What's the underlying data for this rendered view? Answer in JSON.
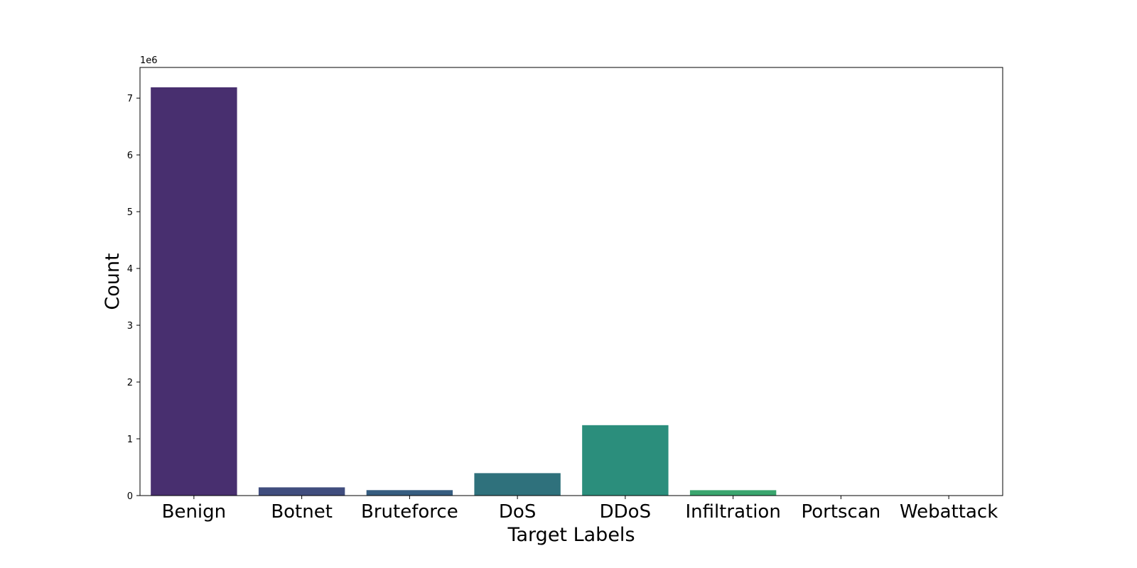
{
  "chart_data": {
    "type": "bar",
    "title": "",
    "xlabel": "Target Labels",
    "ylabel": "Count",
    "offset_label": "1e6",
    "categories": [
      "Benign",
      "Botnet",
      "Bruteforce",
      "DoS",
      "DDoS",
      "Infiltration",
      "Portscan",
      "Webattack"
    ],
    "values": [
      7190000,
      145000,
      96000,
      395000,
      1240000,
      95000,
      1800,
      1200
    ],
    "colors": [
      "#482f6f",
      "#404d7e",
      "#365d80",
      "#2f717c",
      "#2b8e7c",
      "#3aa56e",
      "#5fbc5a",
      "#98cd3c"
    ],
    "ylim": [
      0,
      7540000
    ],
    "yticks": [
      0,
      1,
      2,
      3,
      4,
      5,
      6,
      7
    ],
    "ytick_scale": 1000000,
    "grid": false,
    "legend": "none"
  }
}
